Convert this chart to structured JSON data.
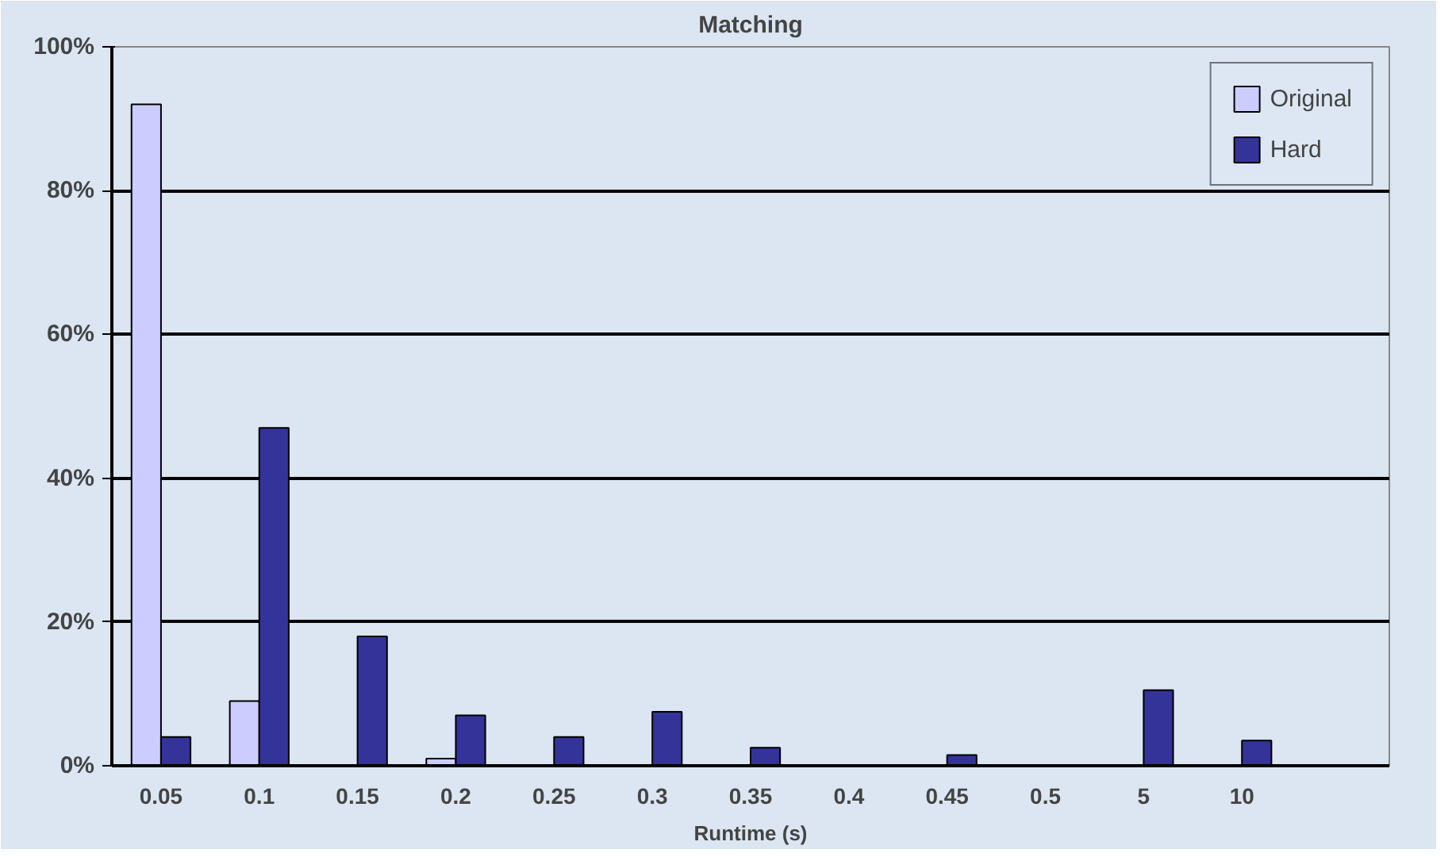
{
  "chart_data": {
    "type": "bar",
    "title": "Matching",
    "xlabel": "Runtime (s)",
    "categories": [
      "0.05",
      "0.1",
      "0.15",
      "0.2",
      "0.25",
      "0.3",
      "0.35",
      "0.4",
      "0.45",
      "0.5",
      "5",
      "10",
      null
    ],
    "series": [
      {
        "name": "Original",
        "color": "#ccccff",
        "values": [
          92,
          9,
          null,
          1,
          null,
          null,
          null,
          null,
          null,
          null,
          null,
          null,
          null
        ]
      },
      {
        "name": "Hard",
        "color": "#333399",
        "values": [
          4,
          47,
          18,
          7,
          4,
          7.5,
          2.5,
          null,
          1.5,
          null,
          10.5,
          3.5,
          null
        ]
      }
    ],
    "ylim": [
      0,
      100
    ],
    "yticks": [
      {
        "value": 0,
        "label": "0%"
      },
      {
        "value": 20,
        "label": "20%"
      },
      {
        "value": 40,
        "label": "40%"
      },
      {
        "value": 60,
        "label": "60%"
      },
      {
        "value": 80,
        "label": "80%"
      },
      {
        "value": 100,
        "label": "100%"
      }
    ],
    "grid": "y",
    "legend": "top right"
  }
}
